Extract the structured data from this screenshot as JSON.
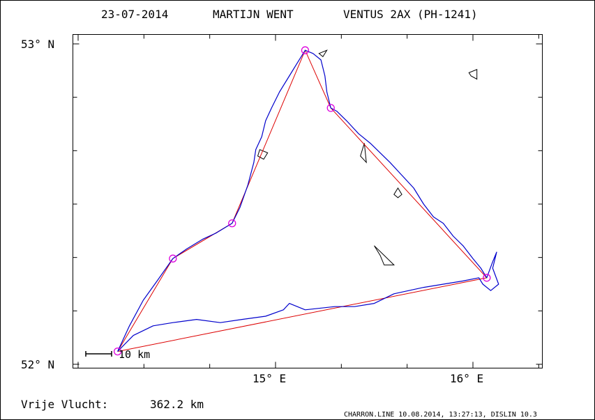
{
  "header": {
    "date": "23-07-2014",
    "pilot": "MARTIJN WENT",
    "glider": "VENTUS 2AX (PH-1241)"
  },
  "footer": {
    "distance_label": "Vrije Vlucht:",
    "distance_value": "362.2 km",
    "credit": "CHARRON.LINE 10.08.2014, 13:27:13, DISLIN 10.3"
  },
  "scale_bar": {
    "label": "10 km",
    "km": 10
  },
  "colors": {
    "track": "#0000cc",
    "task": "#dd0000",
    "turnpoint": "#dd00dd",
    "outline": "#000000"
  },
  "chart_data": {
    "type": "line",
    "title": "23-07-2014    MARTIJN WENT    VENTUS 2AX (PH-1241)",
    "xlabel": "",
    "ylabel": "",
    "xlim": [
      14.0,
      16.35
    ],
    "ylim": [
      52.0,
      53.0
    ],
    "x_ticks": [
      {
        "value": 15.0,
        "label": "15° E"
      },
      {
        "value": 16.0,
        "label": "16° E"
      }
    ],
    "y_ticks": [
      {
        "value": 52.0,
        "label": "52° N"
      },
      {
        "value": 53.0,
        "label": "53° N"
      }
    ],
    "grid": false,
    "turnpoints": [
      {
        "lon": 14.2,
        "lat": 52.04
      },
      {
        "lon": 14.48,
        "lat": 52.33
      },
      {
        "lon": 14.78,
        "lat": 52.44
      },
      {
        "lon": 15.15,
        "lat": 52.98
      },
      {
        "lon": 15.28,
        "lat": 52.8
      },
      {
        "lon": 16.07,
        "lat": 52.27
      }
    ],
    "task_route": [
      [
        14.2,
        52.04
      ],
      [
        14.48,
        52.33
      ],
      [
        14.78,
        52.44
      ],
      [
        15.15,
        52.98
      ],
      [
        15.28,
        52.8
      ],
      [
        16.07,
        52.27
      ],
      [
        14.2,
        52.04
      ]
    ],
    "flight_track": [
      [
        14.2,
        52.04
      ],
      [
        14.26,
        52.12
      ],
      [
        14.33,
        52.2
      ],
      [
        14.4,
        52.26
      ],
      [
        14.48,
        52.33
      ],
      [
        14.55,
        52.36
      ],
      [
        14.63,
        52.39
      ],
      [
        14.7,
        52.41
      ],
      [
        14.78,
        52.44
      ],
      [
        14.82,
        52.49
      ],
      [
        14.86,
        52.56
      ],
      [
        14.89,
        52.63
      ],
      [
        14.9,
        52.67
      ],
      [
        14.93,
        52.71
      ],
      [
        14.95,
        52.76
      ],
      [
        14.98,
        52.8
      ],
      [
        15.02,
        52.85
      ],
      [
        15.07,
        52.9
      ],
      [
        15.11,
        52.94
      ],
      [
        15.15,
        52.98
      ],
      [
        15.19,
        52.97
      ],
      [
        15.23,
        52.95
      ],
      [
        15.25,
        52.9
      ],
      [
        15.26,
        52.85
      ],
      [
        15.28,
        52.8
      ],
      [
        15.31,
        52.79
      ],
      [
        15.36,
        52.76
      ],
      [
        15.42,
        52.72
      ],
      [
        15.48,
        52.69
      ],
      [
        15.53,
        52.66
      ],
      [
        15.58,
        52.63
      ],
      [
        15.64,
        52.59
      ],
      [
        15.7,
        52.55
      ],
      [
        15.75,
        52.5
      ],
      [
        15.8,
        52.46
      ],
      [
        15.85,
        52.44
      ],
      [
        15.9,
        52.4
      ],
      [
        15.95,
        52.37
      ],
      [
        16.0,
        52.33
      ],
      [
        16.04,
        52.3
      ],
      [
        16.07,
        52.27
      ],
      [
        16.1,
        52.32
      ],
      [
        16.12,
        52.35
      ],
      [
        16.1,
        52.3
      ],
      [
        16.13,
        52.25
      ],
      [
        16.09,
        52.23
      ],
      [
        16.05,
        52.25
      ],
      [
        16.03,
        52.27
      ],
      [
        15.95,
        52.26
      ],
      [
        15.85,
        52.25
      ],
      [
        15.75,
        52.24
      ],
      [
        15.6,
        52.22
      ],
      [
        15.5,
        52.19
      ],
      [
        15.4,
        52.18
      ],
      [
        15.3,
        52.18
      ],
      [
        15.15,
        52.17
      ],
      [
        15.07,
        52.19
      ],
      [
        15.04,
        52.17
      ],
      [
        14.95,
        52.15
      ],
      [
        14.83,
        52.14
      ],
      [
        14.72,
        52.13
      ],
      [
        14.6,
        52.14
      ],
      [
        14.48,
        52.13
      ],
      [
        14.38,
        52.12
      ],
      [
        14.28,
        52.09
      ],
      [
        14.2,
        52.04
      ]
    ],
    "lakes": [
      [
        [
          15.22,
          52.97
        ],
        [
          15.26,
          52.98
        ],
        [
          15.24,
          52.96
        ]
      ],
      [
        [
          15.98,
          52.91
        ],
        [
          16.02,
          52.92
        ],
        [
          16.02,
          52.89
        ],
        [
          15.99,
          52.9
        ]
      ],
      [
        [
          14.92,
          52.67
        ],
        [
          14.96,
          52.66
        ],
        [
          14.94,
          52.64
        ],
        [
          14.91,
          52.65
        ]
      ],
      [
        [
          15.43,
          52.65
        ],
        [
          15.45,
          52.69
        ],
        [
          15.46,
          52.63
        ]
      ],
      [
        [
          15.62,
          52.55
        ],
        [
          15.64,
          52.53
        ],
        [
          15.62,
          52.52
        ],
        [
          15.6,
          52.53
        ]
      ],
      [
        [
          15.5,
          52.37
        ],
        [
          15.55,
          52.34
        ],
        [
          15.6,
          52.31
        ],
        [
          15.55,
          52.31
        ],
        [
          15.53,
          52.34
        ]
      ]
    ]
  }
}
